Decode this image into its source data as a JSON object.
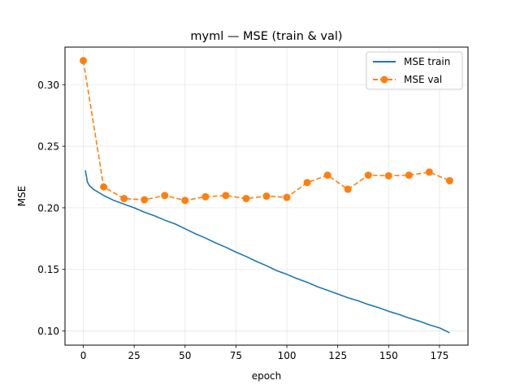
{
  "chart_data": {
    "type": "line",
    "title": "myml — MSE (train & val)",
    "xlabel": "epoch",
    "ylabel": "MSE",
    "xlim": [
      -9,
      189
    ],
    "ylim": [
      0.0885,
      0.3305
    ],
    "xticks": [
      0,
      25,
      50,
      75,
      100,
      125,
      150,
      175
    ],
    "yticks": [
      0.1,
      0.15,
      0.2,
      0.25,
      0.3
    ],
    "xtick_labels": [
      "0",
      "25",
      "50",
      "75",
      "100",
      "125",
      "150",
      "175"
    ],
    "ytick_labels": [
      "0.10",
      "0.15",
      "0.20",
      "0.25",
      "0.30"
    ],
    "grid": true,
    "legend_position": "top-right",
    "series": [
      {
        "name": "MSE train",
        "color": "#1f77b4",
        "style": "solid",
        "marker": "none",
        "x": [
          1,
          2,
          3,
          4,
          5,
          7,
          10,
          15,
          20,
          25,
          30,
          35,
          40,
          45,
          50,
          55,
          60,
          65,
          70,
          75,
          80,
          85,
          90,
          95,
          100,
          105,
          110,
          115,
          120,
          125,
          130,
          135,
          140,
          145,
          150,
          155,
          160,
          165,
          170,
          175,
          180
        ],
        "y": [
          0.2305,
          0.221,
          0.218,
          0.2165,
          0.215,
          0.213,
          0.21,
          0.206,
          0.203,
          0.2,
          0.1965,
          0.1935,
          0.19,
          0.187,
          0.183,
          0.179,
          0.1755,
          0.1715,
          0.168,
          0.164,
          0.1605,
          0.1565,
          0.153,
          0.149,
          0.146,
          0.1425,
          0.1395,
          0.136,
          0.133,
          0.13,
          0.127,
          0.1245,
          0.1215,
          0.119,
          0.116,
          0.1135,
          0.1105,
          0.108,
          0.105,
          0.1025,
          0.0985
        ]
      },
      {
        "name": "MSE val",
        "color": "#ff7f0e",
        "style": "dashed",
        "marker": "circle",
        "x": [
          0,
          10,
          20,
          30,
          40,
          50,
          60,
          70,
          80,
          90,
          100,
          110,
          120,
          130,
          140,
          150,
          160,
          170,
          180
        ],
        "y": [
          0.3195,
          0.217,
          0.2075,
          0.2065,
          0.21,
          0.206,
          0.209,
          0.21,
          0.2075,
          0.2095,
          0.2085,
          0.2205,
          0.2265,
          0.215,
          0.2265,
          0.226,
          0.2265,
          0.229,
          0.222
        ]
      }
    ]
  }
}
